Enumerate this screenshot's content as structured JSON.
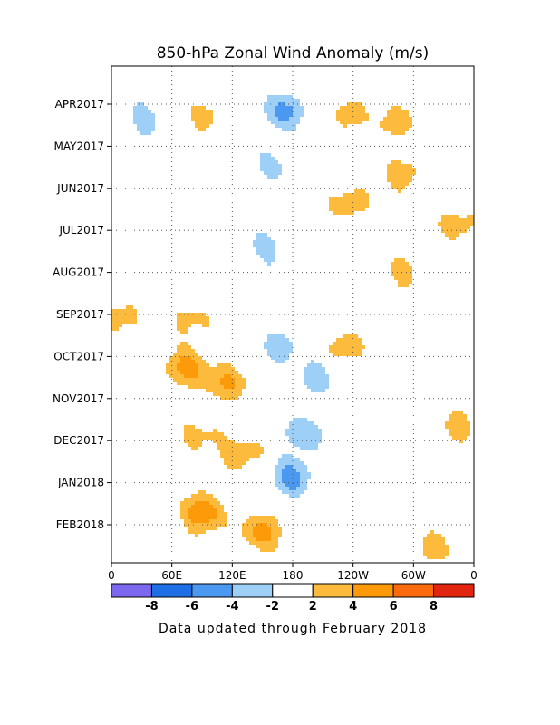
{
  "chart_data": {
    "type": "heatmap",
    "title": "850-hPa Zonal Wind Anomaly (m/s)",
    "footnote": "Data updated through February 2018",
    "x_ticks": [
      "0",
      "60E",
      "120E",
      "180",
      "120W",
      "60W",
      "0"
    ],
    "y_ticks": [
      "APR2017",
      "MAY2017",
      "JUN2017",
      "JUL2017",
      "AUG2017",
      "SEP2017",
      "OCT2017",
      "NOV2017",
      "DEC2017",
      "JAN2018",
      "FEB2018"
    ],
    "x_range_deg_east": [
      0,
      360
    ],
    "contour_label": "0",
    "grid": true,
    "colorbar": {
      "ticks": [
        "-8",
        "-6",
        "-4",
        "-2",
        "2",
        "4",
        "6",
        "8"
      ],
      "colors": [
        "#7b68ee",
        "#1e6fe6",
        "#4a98f0",
        "#9dcff7",
        "#ffffff",
        "#fcbb3c",
        "#fc9a0a",
        "#fb6a0d",
        "#e2250e"
      ]
    },
    "features": [
      {
        "lon": 34,
        "t": 0.3,
        "value": -3
      },
      {
        "lon": 95,
        "t": 0.25,
        "value": 3
      },
      {
        "lon": 170,
        "t": 0.15,
        "value": -5
      },
      {
        "lon": 235,
        "t": 0.2,
        "value": 3
      },
      {
        "lon": 285,
        "t": 0.45,
        "value": 3
      },
      {
        "lon": 165,
        "t": 1.5,
        "value": -3
      },
      {
        "lon": 235,
        "t": 2.35,
        "value": 3
      },
      {
        "lon": 290,
        "t": 1.65,
        "value": 3
      },
      {
        "lon": 150,
        "t": 3.4,
        "value": -3
      },
      {
        "lon": 345,
        "t": 2.9,
        "value": 3
      },
      {
        "lon": 290,
        "t": 4.0,
        "value": 3
      },
      {
        "lon": 80,
        "t": 5.1,
        "value": 3
      },
      {
        "lon": 5,
        "t": 5.1,
        "value": 3
      },
      {
        "lon": 170,
        "t": 5.8,
        "value": -3
      },
      {
        "lon": 235,
        "t": 5.8,
        "value": 3
      },
      {
        "lon": 75,
        "t": 6.3,
        "value": 5
      },
      {
        "lon": 115,
        "t": 6.6,
        "value": 4
      },
      {
        "lon": 200,
        "t": 6.5,
        "value": -3
      },
      {
        "lon": 90,
        "t": 7.9,
        "value": 3
      },
      {
        "lon": 190,
        "t": 7.8,
        "value": -4
      },
      {
        "lon": 345,
        "t": 7.7,
        "value": 3
      },
      {
        "lon": 130,
        "t": 8.3,
        "value": 3
      },
      {
        "lon": 180,
        "t": 8.9,
        "value": -5
      },
      {
        "lon": 90,
        "t": 9.7,
        "value": 6
      },
      {
        "lon": 150,
        "t": 10.2,
        "value": 5
      },
      {
        "lon": 320,
        "t": 10.5,
        "value": 3
      }
    ]
  }
}
